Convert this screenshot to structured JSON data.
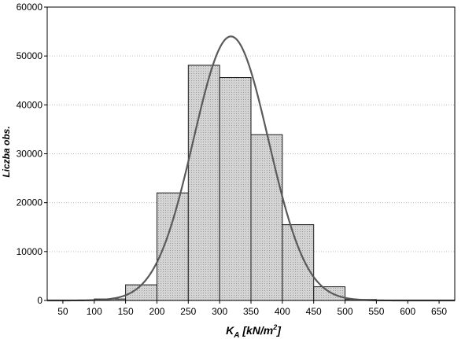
{
  "chart_data": {
    "type": "bar",
    "subtype": "histogram",
    "bins": [
      {
        "from": 50,
        "to": 100,
        "value": 0
      },
      {
        "from": 100,
        "to": 150,
        "value": 300
      },
      {
        "from": 150,
        "to": 200,
        "value": 3200
      },
      {
        "from": 200,
        "to": 250,
        "value": 22000
      },
      {
        "from": 250,
        "to": 300,
        "value": 48100
      },
      {
        "from": 300,
        "to": 350,
        "value": 45600
      },
      {
        "from": 350,
        "to": 400,
        "value": 33900
      },
      {
        "from": 400,
        "to": 450,
        "value": 15500
      },
      {
        "from": 450,
        "to": 500,
        "value": 2800
      },
      {
        "from": 500,
        "to": 550,
        "value": 200
      },
      {
        "from": 550,
        "to": 600,
        "value": 0
      },
      {
        "from": 600,
        "to": 650,
        "value": 0
      }
    ],
    "normal_curve": {
      "mean": 318,
      "peak": 54000,
      "sd": 60
    },
    "title": "",
    "xlabel_main": "K",
    "xlabel_sub": "A",
    "xlabel_unit": " [kN/m",
    "xlabel_sup": "2",
    "xlabel_close": "]",
    "ylabel": "Liczba obs.",
    "xlim": [
      25,
      675
    ],
    "ylim": [
      0,
      60000
    ],
    "x_ticks": [
      50,
      100,
      150,
      200,
      250,
      300,
      350,
      400,
      450,
      500,
      550,
      600,
      650
    ],
    "y_ticks": [
      0,
      10000,
      20000,
      30000,
      40000,
      50000,
      60000
    ],
    "grid": "horizontal dotted",
    "bar_fill": "#d4d4d4",
    "bar_stroke": "#1a1a1a",
    "curve_color": "#5a5a5a"
  }
}
